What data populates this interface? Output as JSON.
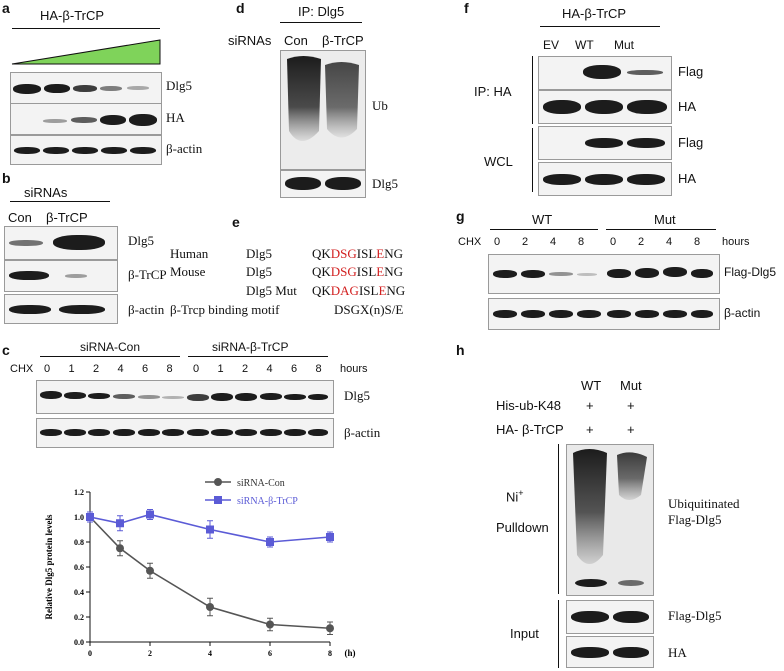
{
  "panels": {
    "a": {
      "letter": "a",
      "construct": "HA-β-TrCP",
      "rows": [
        "Dlg5",
        "HA",
        "β-actin"
      ]
    },
    "b": {
      "letter": "b",
      "title": "siRNAs",
      "lanes": [
        "Con",
        "β-TrCP"
      ],
      "rows": [
        "Dlg5",
        "β-TrCP",
        "β-actin"
      ]
    },
    "c": {
      "letter": "c",
      "groups": [
        "siRNA-Con",
        "siRNA-β-TrCP"
      ],
      "chx_label": "CHX",
      "times": [
        "0",
        "1",
        "2",
        "4",
        "6",
        "8",
        "0",
        "1",
        "2",
        "4",
        "6",
        "8"
      ],
      "unit": "hours",
      "rows": [
        "Dlg5",
        "β-actin"
      ]
    },
    "d": {
      "letter": "d",
      "ip": "IP: Dlg5",
      "sirnas": "siRNAs",
      "lanes": [
        "Con",
        "β-TrCP"
      ],
      "rows": [
        "Ub",
        "Dlg5"
      ]
    },
    "e": {
      "letter": "e",
      "rows": [
        {
          "species": "Human",
          "protein": "Dlg5",
          "pre": "QK",
          "motif": "DSG",
          "mid": "ISL",
          "e": "E",
          "post": "NG"
        },
        {
          "species": "Mouse",
          "protein": "Dlg5",
          "pre": "QK",
          "motif": "DSG",
          "mid": "ISL",
          "e": "E",
          "post": "NG"
        },
        {
          "species": "",
          "protein": "Dlg5 Mut",
          "pre": "QK",
          "motif": "DAG",
          "mid": "ISL",
          "e": "E",
          "post": "NG"
        }
      ],
      "binding_label": "β-Trcp binding motif",
      "binding_motif": "DSGX(n)S/E"
    },
    "f": {
      "letter": "f",
      "construct": "HA-β-TrCP",
      "lanes": [
        "EV",
        "WT",
        "Mut"
      ],
      "ip": "IP: HA",
      "wcl": "WCL",
      "rows": [
        "Flag",
        "HA",
        "Flag",
        "HA"
      ]
    },
    "g": {
      "letter": "g",
      "groups": [
        "WT",
        "Mut"
      ],
      "chx_label": "CHX",
      "times": [
        "0",
        "2",
        "4",
        "8",
        "0",
        "2",
        "4",
        "8"
      ],
      "unit": "hours",
      "rows": [
        "Flag-Dlg5",
        "β-actin"
      ]
    },
    "h": {
      "letter": "h",
      "lanes": [
        "WT",
        "Mut"
      ],
      "conditions": [
        {
          "name": "His-ub-K48",
          "wt": "+",
          "mut": "+"
        },
        {
          "name": "HA- β-TrCP",
          "wt": "+",
          "mut": "+"
        }
      ],
      "ni": "Ni",
      "ni_sup": "+",
      "pulldown": "Pulldown",
      "ubiq_line1": "Ubiquitinated",
      "ubiq_line2": "Flag-Dlg5",
      "input": "Input",
      "rows": [
        "Flag-Dlg5",
        "HA"
      ]
    }
  },
  "chart_data": {
    "type": "line",
    "title": "",
    "xlabel": "(h)",
    "ylabel": "Relative Dlg5 protein levels",
    "x": [
      0,
      1,
      2,
      4,
      6,
      8
    ],
    "xlim": [
      0,
      8
    ],
    "ylim": [
      0,
      1.2
    ],
    "xticks": [
      "0",
      "2",
      "4",
      "6",
      "8"
    ],
    "yticks": [
      "0.0",
      "0.2",
      "0.4",
      "0.6",
      "0.8",
      "1.0",
      "1.2"
    ],
    "legend_position": "top-right",
    "grid": false,
    "series": [
      {
        "name": "siRNA-Con",
        "color": "#555555",
        "marker": "circle",
        "values": [
          1.0,
          0.75,
          0.57,
          0.28,
          0.14,
          0.11
        ],
        "errors": [
          0.04,
          0.06,
          0.06,
          0.07,
          0.05,
          0.05
        ]
      },
      {
        "name": "siRNA-β-TrCP",
        "color": "#5b5bd6",
        "marker": "square",
        "values": [
          1.0,
          0.95,
          1.02,
          0.9,
          0.8,
          0.84
        ],
        "errors": [
          0.04,
          0.06,
          0.04,
          0.07,
          0.04,
          0.04
        ]
      }
    ]
  }
}
